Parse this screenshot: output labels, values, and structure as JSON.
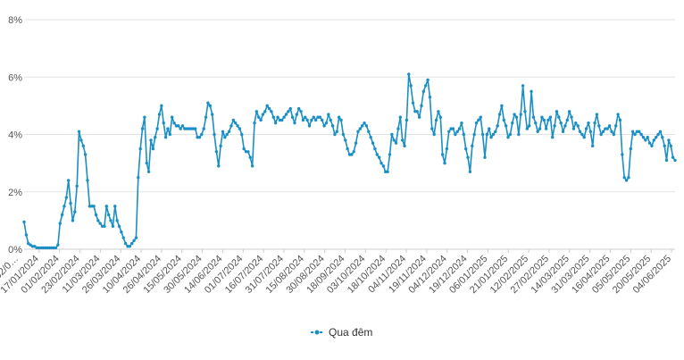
{
  "chart_data": {
    "type": "line",
    "title": "",
    "xlabel": "",
    "ylabel": "",
    "ylim": [
      0,
      8
    ],
    "y_ticks": [
      "0%",
      "2%",
      "4%",
      "6%",
      "8%"
    ],
    "x_tick_labels": [
      "02/0…",
      "17/01/2024",
      "01/02/2024",
      "23/02/2024",
      "11/03/2024",
      "26/03/2024",
      "10/04/2024",
      "26/04/2024",
      "15/05/2024",
      "30/05/2024",
      "14/06/2024",
      "01/07/2024",
      "16/07/2024",
      "31/07/2024",
      "15/08/2024",
      "30/08/2024",
      "18/09/2024",
      "03/10/2024",
      "18/10/2024",
      "04/11/2024",
      "19/11/2024",
      "04/12/2024",
      "19/12/2024",
      "06/01/2025",
      "21/01/2025",
      "12/02/2025",
      "27/02/2025",
      "14/03/2025",
      "31/03/2025",
      "16/04/2025",
      "05/05/2025",
      "20/05/2025",
      "04/06/2025"
    ],
    "grid": "horizontal",
    "legend_position": "bottom-center",
    "colors": {
      "series": "#1a8fc4",
      "grid": "#e3e3e3",
      "axis": "#cccccc",
      "text": "#555555"
    },
    "series": [
      {
        "name": "Qua đêm",
        "values": [
          0.95,
          0.5,
          0.2,
          0.15,
          0.1,
          0.1,
          0.05,
          0.05,
          0.05,
          0.05,
          0.05,
          0.05,
          0.05,
          0.05,
          0.05,
          0.05,
          0.15,
          0.9,
          1.2,
          1.5,
          1.8,
          2.4,
          1.6,
          1.0,
          1.3,
          2.2,
          4.1,
          3.8,
          3.6,
          3.3,
          2.4,
          1.5,
          1.5,
          1.5,
          1.2,
          1.0,
          0.9,
          0.8,
          0.8,
          1.5,
          1.2,
          1.0,
          0.8,
          1.5,
          1.0,
          0.8,
          0.6,
          0.4,
          0.2,
          0.1,
          0.1,
          0.2,
          0.3,
          0.4,
          2.5,
          3.5,
          4.2,
          4.6,
          3.0,
          2.7,
          3.8,
          3.5,
          3.9,
          4.2,
          4.7,
          5.0,
          4.4,
          3.9,
          4.2,
          4.0,
          4.6,
          4.4,
          4.3,
          4.3,
          4.2,
          4.3,
          4.2,
          4.2,
          4.2,
          4.2,
          4.2,
          4.2,
          3.9,
          3.9,
          4.0,
          4.2,
          4.6,
          5.1,
          5.0,
          4.7,
          4.0,
          3.4,
          2.9,
          3.6,
          4.1,
          3.9,
          4.0,
          4.1,
          4.3,
          4.5,
          4.4,
          4.3,
          4.2,
          4.0,
          3.5,
          3.4,
          3.4,
          3.2,
          2.9,
          4.4,
          4.8,
          4.6,
          4.5,
          4.7,
          4.8,
          5.0,
          4.9,
          4.8,
          4.6,
          4.4,
          4.6,
          4.5,
          4.5,
          4.6,
          4.7,
          4.8,
          4.9,
          4.6,
          4.4,
          4.7,
          4.9,
          4.8,
          4.5,
          4.6,
          4.5,
          4.3,
          4.5,
          4.6,
          4.5,
          4.6,
          4.6,
          4.5,
          4.3,
          4.4,
          4.7,
          4.5,
          4.3,
          4.0,
          4.1,
          4.6,
          4.5,
          4.0,
          3.8,
          3.5,
          3.3,
          3.3,
          3.4,
          3.7,
          4.1,
          4.2,
          4.3,
          4.4,
          4.3,
          4.1,
          3.9,
          3.7,
          3.5,
          3.3,
          3.2,
          3.0,
          2.9,
          2.7,
          2.7,
          3.3,
          4.0,
          3.8,
          3.7,
          4.2,
          4.6,
          3.8,
          3.6,
          4.5,
          6.1,
          5.7,
          5.1,
          4.8,
          4.8,
          4.6,
          5.0,
          5.5,
          5.7,
          5.9,
          5.3,
          4.2,
          4.0,
          4.5,
          4.8,
          4.6,
          3.3,
          3.0,
          3.5,
          4.1,
          4.2,
          4.2,
          4.0,
          4.1,
          4.2,
          4.4,
          4.0,
          3.5,
          3.2,
          2.7,
          3.6,
          4.0,
          4.4,
          4.5,
          4.6,
          4.0,
          3.2,
          4.0,
          4.2,
          3.9,
          4.0,
          4.1,
          4.3,
          4.7,
          5.0,
          4.5,
          4.3,
          3.9,
          4.0,
          4.4,
          4.7,
          4.6,
          4.0,
          4.7,
          5.7,
          4.8,
          4.2,
          4.3,
          5.5,
          4.6,
          4.4,
          4.1,
          4.2,
          4.6,
          4.5,
          4.2,
          4.5,
          4.6,
          3.9,
          4.3,
          4.8,
          4.6,
          4.4,
          4.1,
          4.3,
          4.5,
          4.8,
          4.6,
          4.2,
          4.4,
          4.3,
          4.1,
          4.0,
          3.9,
          4.2,
          4.4,
          4.1,
          3.6,
          4.4,
          4.7,
          4.3,
          4.0,
          4.1,
          4.2,
          4.2,
          4.3,
          4.1,
          4.0,
          4.3,
          4.7,
          4.5,
          3.3,
          2.5,
          2.4,
          2.5,
          3.5,
          4.1,
          4.0,
          4.1,
          4.1,
          4.0,
          3.9,
          3.8,
          3.9,
          3.7,
          3.6,
          3.8,
          3.9,
          4.0,
          4.1,
          3.9,
          3.6,
          3.1,
          3.8,
          3.6,
          3.2,
          3.1
        ]
      }
    ]
  }
}
